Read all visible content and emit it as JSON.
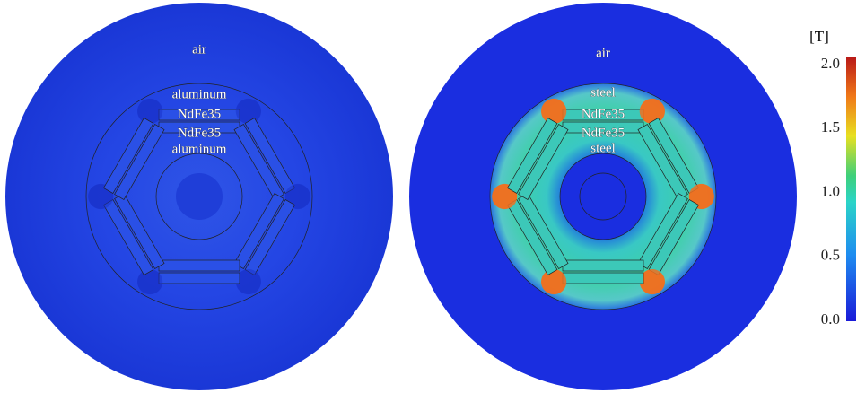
{
  "left_panel": {
    "labels": [
      "air",
      "aluminum",
      "NdFe35",
      "NdFe35",
      "aluminum"
    ]
  },
  "right_panel": {
    "labels": [
      "air",
      "steel",
      "NdFe35",
      "NdFe35",
      "steel"
    ]
  },
  "colorbar": {
    "unit": "[T]",
    "ticks": [
      "2.0",
      "1.5",
      "1.0",
      "0.5",
      "0.0"
    ]
  }
}
